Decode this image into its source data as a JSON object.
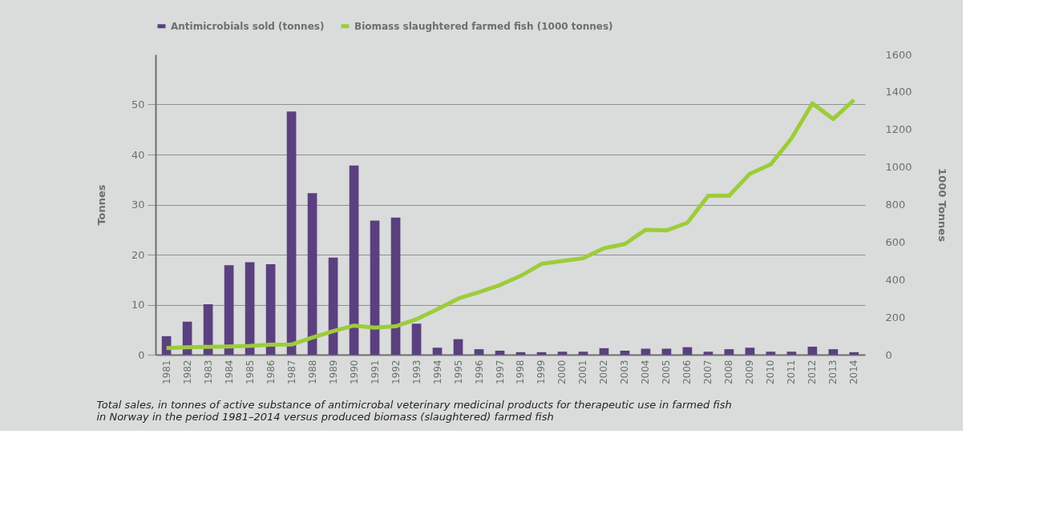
{
  "chart_data": {
    "type": "bar",
    "categories": [
      "1981",
      "1982",
      "1983",
      "1984",
      "1985",
      "1986",
      "1987",
      "1988",
      "1989",
      "1990",
      "1991",
      "1992",
      "1993",
      "1994",
      "1995",
      "1996",
      "1997",
      "1998",
      "1999",
      "2000",
      "2001",
      "2002",
      "2003",
      "2004",
      "2005",
      "2006",
      "2007",
      "2008",
      "2009",
      "2010",
      "2011",
      "2012",
      "2013",
      "2014"
    ],
    "series": [
      {
        "name": "Antimicrobials sold (tonnes)",
        "color": "#5b4080",
        "values": [
          3.7,
          6.6,
          10.1,
          17.9,
          18.5,
          18.1,
          48.6,
          32.3,
          19.4,
          37.8,
          26.8,
          27.4,
          6.2,
          1.4,
          3.1,
          1.1,
          0.8,
          0.5,
          0.5,
          0.6,
          0.6,
          1.3,
          0.8,
          1.2,
          1.2,
          1.5,
          0.6,
          1.1,
          1.4,
          0.6,
          0.6,
          1.6,
          1.1,
          0.5
        ]
      },
      {
        "name": "Biomass slaughtered farmed fish (1000 tonnes)",
        "type": "line",
        "axis": "y2",
        "color": "#9dcc3a",
        "values": [
          35,
          39,
          42,
          44,
          47,
          53,
          54,
          91,
          125,
          155,
          144,
          151,
          189,
          242,
          299,
          333,
          371,
          420,
          484,
          499,
          514,
          567,
          590,
          666,
          662,
          703,
          847,
          847,
          964,
          1014,
          1153,
          1339,
          1256,
          1358
        ]
      }
    ],
    "ylabel": "Tonnes",
    "y2label": "1000 Tonnes",
    "ylim": [
      0,
      60
    ],
    "yticks": [
      0,
      10,
      20,
      30,
      40,
      50
    ],
    "y2lim": [
      0,
      1600
    ],
    "y2ticks": [
      0,
      200,
      400,
      600,
      800,
      1000,
      1200,
      1400,
      1600
    ],
    "grid": "y",
    "legend": "top left",
    "marker": "none",
    "line_style": "solid",
    "annotations": [
      "Total sales, in tonnes of active substance of antimicrobal veterinary medicinal products for therapeutic use in farmed fish in Norway in the period 1981–2014 versus produced biomass (slaughtered) farmed fish"
    ]
  }
}
